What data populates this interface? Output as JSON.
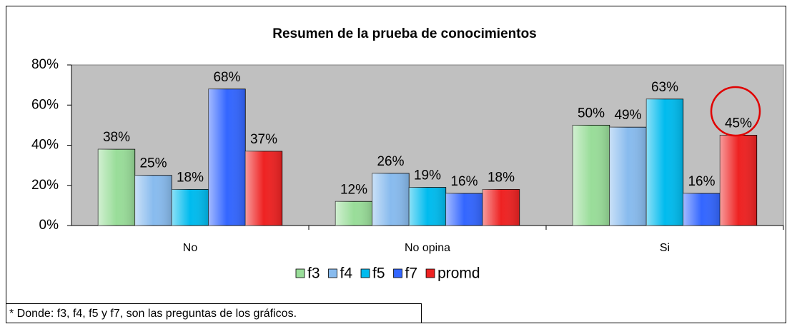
{
  "chart_data": {
    "type": "bar",
    "title": "Resumen de la prueba de conocimientos",
    "categories": [
      "No",
      "No opina",
      "Si"
    ],
    "series": [
      {
        "name": "f3",
        "color": "#99dd99",
        "values": [
          38,
          12,
          50
        ],
        "value_labels": [
          "38%",
          "12%",
          "50%"
        ]
      },
      {
        "name": "f4",
        "color": "#88bbee",
        "values": [
          25,
          26,
          49
        ],
        "value_labels": [
          "25%",
          "26%",
          "49%"
        ]
      },
      {
        "name": "f5",
        "color": "#00bbee",
        "values": [
          18,
          19,
          63
        ],
        "value_labels": [
          "18%",
          "19%",
          "63%"
        ]
      },
      {
        "name": "f7",
        "color": "#3366ff",
        "values": [
          68,
          16,
          16
        ],
        "value_labels": [
          "68%",
          "16%",
          "16%"
        ]
      },
      {
        "name": "promd",
        "color": "#ee2222",
        "values": [
          37,
          18,
          45
        ],
        "value_labels": [
          "37%",
          "18%",
          "45%"
        ]
      }
    ],
    "ylim": [
      0,
      80
    ],
    "yticks": [
      {
        "value": 0,
        "label": "0%"
      },
      {
        "value": 20,
        "label": "20%"
      },
      {
        "value": 40,
        "label": "40%"
      },
      {
        "value": 60,
        "label": "60%"
      },
      {
        "value": 80,
        "label": "80%"
      }
    ],
    "legend": "bottom",
    "annotation": "* Donde: f3, f4, f5 y f7, son las preguntas de los gráficos."
  }
}
